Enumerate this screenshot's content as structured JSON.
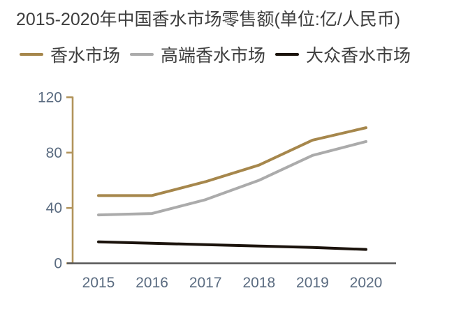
{
  "title": "2015-2020年中国香水市场零售额(单位:亿/人民币)",
  "legend": {
    "items": [
      {
        "label": "香水市场",
        "color": "#A6874C"
      },
      {
        "label": "高端香水市场",
        "color": "#ABABAB"
      },
      {
        "label": "大众香水市场",
        "color": "#1B130C"
      }
    ]
  },
  "chart_data": {
    "type": "line",
    "title": "2015-2020年中国香水市场零售额(单位:亿/人民币)",
    "unit": "亿/人民币",
    "categories": [
      "2015",
      "2016",
      "2017",
      "2018",
      "2019",
      "2020"
    ],
    "series": [
      {
        "name": "香水市场",
        "color": "#A6874C",
        "values": [
          49,
          49,
          59,
          71,
          89,
          98
        ]
      },
      {
        "name": "高端香水市场",
        "color": "#ABABAB",
        "values": [
          35,
          36,
          46,
          60,
          78,
          88
        ]
      },
      {
        "name": "大众香水市场",
        "color": "#1B130C",
        "values": [
          15.5,
          14.5,
          13.5,
          12.5,
          11.5,
          10
        ]
      }
    ],
    "xlabel": "",
    "ylabel": "",
    "ylim": [
      0,
      120
    ],
    "yticks": [
      0,
      40,
      80,
      120
    ],
    "grid": false,
    "legend_position": "top",
    "axis_colors": {
      "y_axis": "#B2945B",
      "x_axis": "#565656",
      "tick_label": "#5A6B80"
    }
  }
}
